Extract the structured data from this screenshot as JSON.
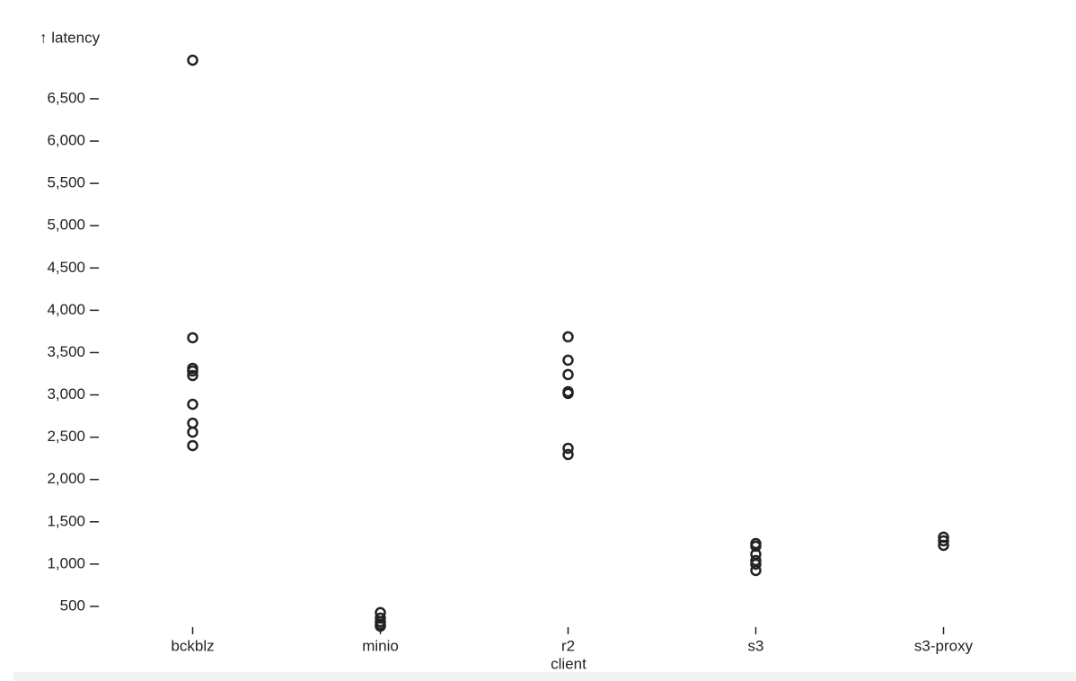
{
  "chart_data": {
    "type": "dot",
    "y_label": "↑ latency",
    "x_label": "client",
    "categories": [
      "bckblz",
      "minio",
      "r2",
      "s3",
      "s3-proxy"
    ],
    "x": [
      "bckblz",
      "bckblz",
      "bckblz",
      "bckblz",
      "bckblz",
      "bckblz",
      "bckblz",
      "bckblz",
      "bckblz",
      "minio",
      "minio",
      "minio",
      "minio",
      "minio",
      "r2",
      "r2",
      "r2",
      "r2",
      "r2",
      "r2",
      "r2",
      "s3",
      "s3",
      "s3",
      "s3",
      "s3",
      "s3",
      "s3-proxy",
      "s3-proxy",
      "s3-proxy"
    ],
    "values": [
      6956,
      3675,
      3314,
      3282,
      3229,
      2889,
      2666,
      2560,
      2401,
      426,
      362,
      319,
      288,
      266,
      3686,
      3410,
      3240,
      3038,
      3017,
      2369,
      2295,
      1243,
      1211,
      1116,
      1042,
      999,
      925,
      1318,
      1275,
      1222
    ],
    "color": "#222222",
    "ylim": [
      266,
      6956
    ],
    "yticks": [
      500,
      {
        "value": 1000,
        "label": "1,000"
      },
      {
        "value": 1500,
        "label": "1,500"
      },
      {
        "value": 2000,
        "label": "2,000"
      },
      {
        "value": 2500,
        "label": "2,500"
      },
      {
        "value": 3000,
        "label": "3,000"
      },
      {
        "value": 3500,
        "label": "3,500"
      },
      {
        "value": 4000,
        "label": "4,000"
      },
      {
        "value": 4500,
        "label": "4,500"
      },
      {
        "value": 5000,
        "label": "5,000"
      },
      {
        "value": 5500,
        "label": "5,500"
      },
      {
        "value": 6000,
        "label": "6,000"
      },
      {
        "value": 6500,
        "label": "6,500"
      }
    ]
  }
}
